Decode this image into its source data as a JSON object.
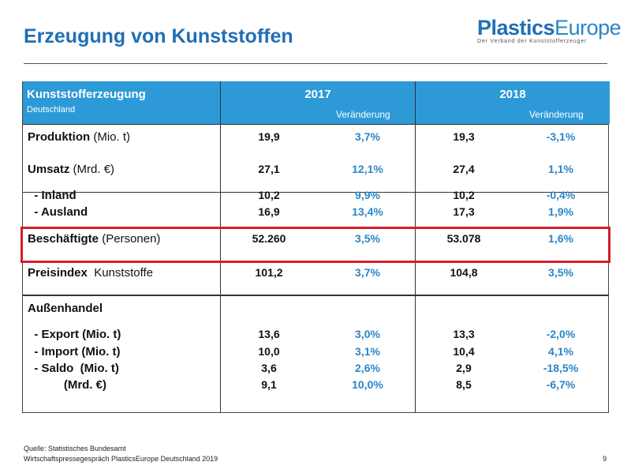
{
  "title": "Erzeugung von Kunststoffen",
  "logo": {
    "part1": "Plastics",
    "part2": "Europe",
    "tagline": "Der Verband der Kunststofferzeuger"
  },
  "header": {
    "title": "Kunststofferzeugung",
    "subtitle": "Deutschland",
    "year1": "2017",
    "year2": "2018",
    "change1": "Veränderung",
    "change2": "Veränderung"
  },
  "rows": [
    {
      "bold": "Produktion",
      "rest": " (Mio. t)",
      "v1": "19,9",
      "p1": "3,7%",
      "v2": "19,3",
      "p2": "-3,1%"
    },
    {
      "bold": "Umsatz",
      "rest": " (Mrd. €)",
      "v1": "27,1",
      "p1": "12,1%",
      "v2": "27,4",
      "p2": "1,1%"
    },
    {
      "bold": "  - Inland",
      "rest": "",
      "v1": "10,2",
      "p1": "9,9%",
      "v2": "10,2",
      "p2": "-0,4%"
    },
    {
      "bold": "  - Ausland",
      "rest": "",
      "v1": "16,9",
      "p1": "13,4%",
      "v2": "17,3",
      "p2": "1,9%"
    },
    {
      "bold": "Beschäftigte",
      "rest": " (Personen)",
      "v1": "52.260",
      "p1": "3,5%",
      "v2": "53.078",
      "p2": "1,6%"
    },
    {
      "bold": "Preisindex",
      "rest": "  Kunststoffe",
      "v1": "101,2",
      "p1": "3,7%",
      "v2": "104,8",
      "p2": "3,5%"
    },
    {
      "bold": "Außenhandel",
      "rest": "",
      "v1": "",
      "p1": "",
      "v2": "",
      "p2": ""
    },
    {
      "bold": "  - Export (Mio. t)",
      "rest": "",
      "v1": "13,6",
      "p1": "3,0%",
      "v2": "13,3",
      "p2": "-2,0%"
    },
    {
      "bold": "  - Import (Mio. t)",
      "rest": "",
      "v1": "10,0",
      "p1": "3,1%",
      "v2": "10,4",
      "p2": "4,1%"
    },
    {
      "bold": "  - Saldo  (Mio. t)",
      "rest": "",
      "v1": "3,6",
      "p1": "2,6%",
      "v2": "2,9",
      "p2": "-18,5%"
    },
    {
      "bold": "           (Mrd. €)",
      "rest": "",
      "v1": "9,1",
      "p1": "10,0%",
      "v2": "8,5",
      "p2": "-6,7%"
    }
  ],
  "footer": {
    "source": "Quelle: Statistisches Bundesamt",
    "event": "Wirtschaftspressegespräch PlasticsEurope Deutschland 2019",
    "page": "9"
  },
  "colors": {
    "title": "#1f6fb5",
    "header_bg": "#2d9ad7",
    "percent": "#2a86c8",
    "highlight": "#d0202a"
  }
}
